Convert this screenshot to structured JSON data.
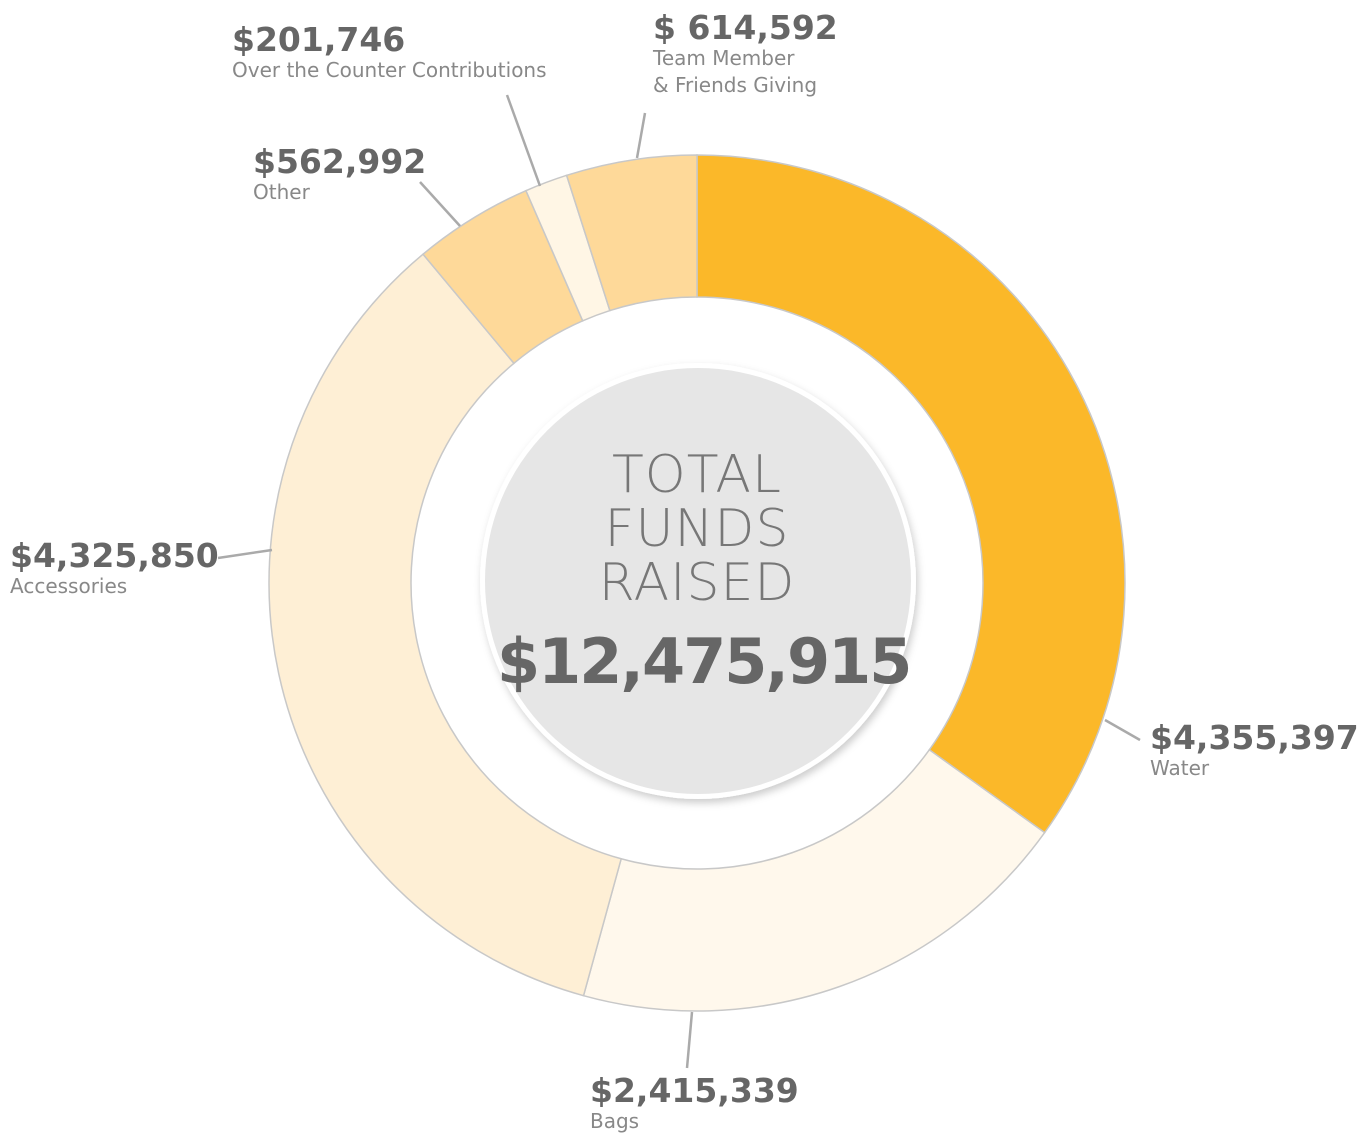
{
  "chart_data": {
    "type": "donut",
    "center_label": "TOTAL\nFUNDS\nRAISED",
    "total_label": "$12,475,915",
    "categories": [
      "Water",
      "Bags",
      "Accessories",
      "Other",
      "Over the Counter Contributions",
      "Team Member\n& Friends Giving"
    ],
    "values": [
      4355397,
      2415339,
      4325850,
      562992,
      201746,
      614592
    ],
    "value_labels": [
      "$4,355,397",
      "$2,415,339",
      "$4,325,850",
      "$562,992",
      "$201,746",
      "$ 614,592"
    ],
    "colors": [
      "#fbb829",
      "#fff8ec",
      "#feefd5",
      "#fed999",
      "#fff6e5",
      "#fed999"
    ]
  }
}
